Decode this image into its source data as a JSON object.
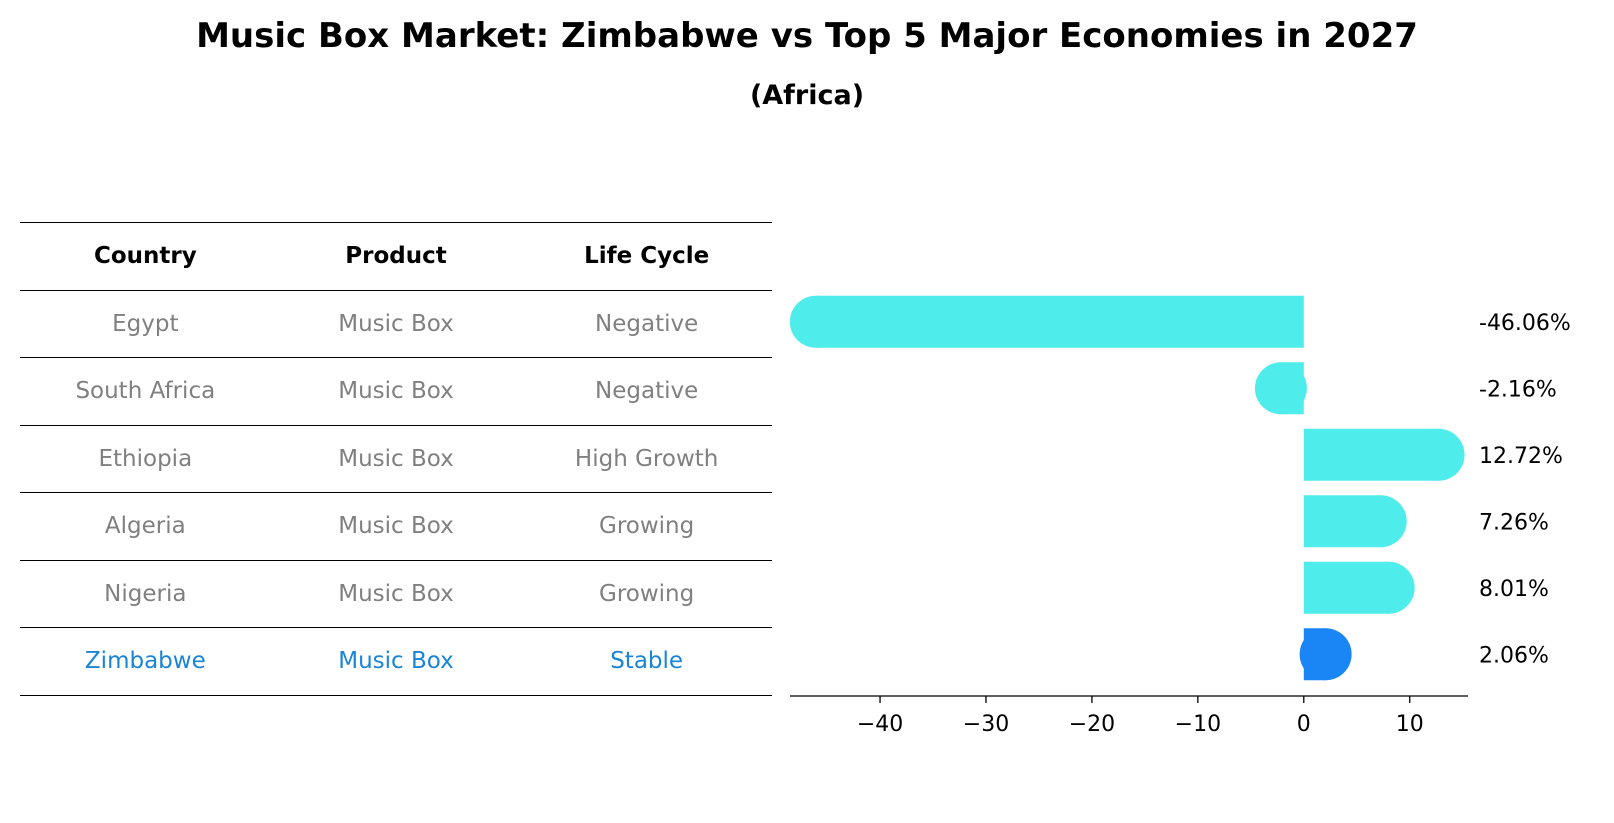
{
  "title": "Music Box Market: Zimbabwe vs Top 5 Major Economies in 2027",
  "subtitle": "(Africa)",
  "table": {
    "headers": [
      "Country",
      "Product",
      "Life Cycle"
    ],
    "rows": [
      [
        "Egypt",
        "Music Box",
        "Negative"
      ],
      [
        "South Africa",
        "Music Box",
        "Negative"
      ],
      [
        "Ethiopia",
        "Music Box",
        "High Growth"
      ],
      [
        "Algeria",
        "Music Box",
        "Growing"
      ],
      [
        "Nigeria",
        "Music Box",
        "Growing"
      ],
      [
        "Zimbabwe",
        "Music Box",
        "Stable"
      ]
    ],
    "highlight_row": 5
  },
  "chart_data": {
    "type": "bar",
    "orientation": "horizontal",
    "categories": [
      "Egypt",
      "South Africa",
      "Ethiopia",
      "Algeria",
      "Nigeria",
      "Zimbabwe"
    ],
    "values": [
      -46.06,
      -2.16,
      12.72,
      7.26,
      8.01,
      2.06
    ],
    "value_labels": [
      "-46.06%",
      "-2.16%",
      "12.72%",
      "7.26%",
      "8.01%",
      "2.06%"
    ],
    "xlim": [
      -48.5,
      15.5
    ],
    "xticks": [
      -40,
      -30,
      -20,
      -10,
      0,
      10
    ],
    "xtick_labels": [
      "−40",
      "−30",
      "−20",
      "−10",
      "0",
      "10"
    ],
    "grid": false,
    "colors": {
      "default": "#4eecea",
      "highlight": "#1a85f5"
    },
    "highlight_index": 5
  }
}
